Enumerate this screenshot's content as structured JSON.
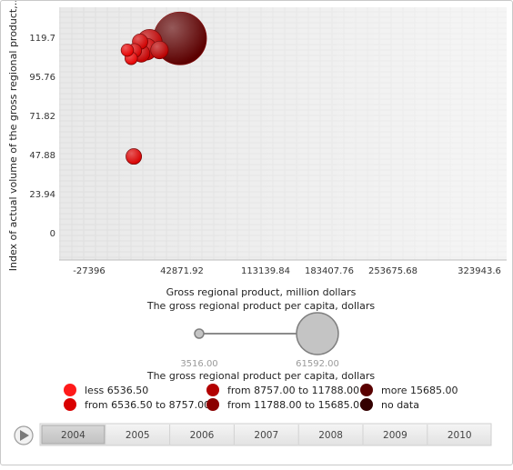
{
  "chart_data": {
    "type": "bubble",
    "ylabel": "Index of actual volume of the gross regional product,...",
    "xlabel": "Gross regional product, million dollars",
    "size_label": "The gross regional product per capita, dollars",
    "y_ticks": [
      "119.7",
      "95.76",
      "71.82",
      "47.88",
      "23.94",
      "0"
    ],
    "x_ticks": [
      "-27396",
      "42871.92",
      "113139.84",
      "183407.76",
      "253675.68",
      "323943.6"
    ],
    "xlim": [
      -27396,
      323943.6
    ],
    "ylim": [
      0,
      119.7
    ],
    "size_range": [
      "3516.00",
      "61592.00"
    ],
    "size_range_values": [
      3516,
      61592
    ],
    "points": [
      {
        "x": 7000,
        "y": 111.8,
        "size": 5400,
        "color": "#e60000"
      },
      {
        "x": 13500,
        "y": 111.5,
        "size": 6500,
        "color": "#d40000"
      },
      {
        "x": 18500,
        "y": 117.0,
        "size": 7500,
        "color": "#cf0000"
      },
      {
        "x": 10500,
        "y": 106.8,
        "size": 5500,
        "color": "#e60000"
      },
      {
        "x": 24000,
        "y": 112.4,
        "size": 13000,
        "color": "#c80000"
      },
      {
        "x": 27000,
        "y": 116.8,
        "size": 16500,
        "color": "#bb0000"
      },
      {
        "x": 19500,
        "y": 109.8,
        "size": 9000,
        "color": "#c40000"
      },
      {
        "x": 36000,
        "y": 111.9,
        "size": 9200,
        "color": "#b80000"
      },
      {
        "x": 12800,
        "y": 46.7,
        "size": 7600,
        "color": "#d80000"
      },
      {
        "x": 54500,
        "y": 119.0,
        "size": 61592,
        "color": "#5c0000"
      }
    ]
  },
  "legend": {
    "items": [
      {
        "label": "less 6536.50",
        "color": "#ff1a1a"
      },
      {
        "label": "from 8757.00 to 11788.00",
        "color": "#b30000"
      },
      {
        "label": "more 15685.00",
        "color": "#5a0000"
      },
      {
        "label": "from 6536.50 to 8757.00",
        "color": "#d90000"
      },
      {
        "label": "from 11788.00 to 15685.00",
        "color": "#8a0000"
      },
      {
        "label": "no data",
        "color": "#330000"
      }
    ]
  },
  "timeline": {
    "years": [
      "2004",
      "2005",
      "2006",
      "2007",
      "2008",
      "2009",
      "2010"
    ],
    "selected": "2004"
  }
}
